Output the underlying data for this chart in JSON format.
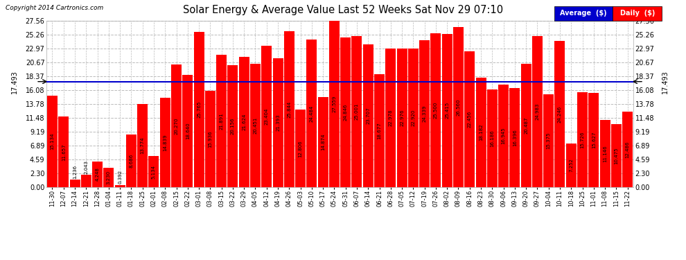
{
  "title": "Solar Energy & Average Value Last 52 Weeks Sat Nov 29 07:10",
  "copyright": "Copyright 2014 Cartronics.com",
  "average_label": "Average  ($)",
  "daily_label": "Daily  ($)",
  "average_value": 17.493,
  "bar_color": "#ff0000",
  "background_color": "#ffffff",
  "plot_bg_color": "#ffffff",
  "grid_color": "#bbbbbb",
  "average_line_color": "#0000cc",
  "legend_avg_color": "#0000cc",
  "legend_daily_color": "#ff0000",
  "yticks": [
    0.0,
    2.3,
    4.59,
    6.89,
    9.19,
    11.48,
    13.78,
    16.08,
    18.37,
    20.67,
    22.97,
    25.26,
    27.56
  ],
  "ymax": 27.56,
  "categories": [
    "11-30",
    "12-07",
    "12-14",
    "12-21",
    "12-28",
    "01-04",
    "01-11",
    "01-18",
    "01-25",
    "02-01",
    "02-08",
    "02-15",
    "02-22",
    "03-01",
    "03-08",
    "03-15",
    "03-22",
    "03-29",
    "04-05",
    "04-12",
    "04-19",
    "04-26",
    "05-03",
    "05-10",
    "05-17",
    "05-24",
    "05-31",
    "06-07",
    "06-14",
    "06-21",
    "06-28",
    "07-05",
    "07-12",
    "07-19",
    "07-26",
    "08-02",
    "08-09",
    "08-16",
    "08-23",
    "08-30",
    "09-06",
    "09-13",
    "09-20",
    "09-27",
    "10-04",
    "10-11",
    "10-18",
    "10-25",
    "11-01",
    "11-08",
    "11-15",
    "11-22"
  ],
  "values": [
    15.134,
    11.657,
    1.236,
    2.043,
    4.248,
    3.23,
    0.392,
    8.686,
    13.774,
    5.134,
    14.839,
    20.27,
    18.64,
    25.765,
    15.936,
    21.891,
    20.156,
    21.624,
    20.451,
    23.404,
    21.393,
    25.844,
    12.806,
    24.484,
    14.874,
    27.559,
    24.846,
    25.001,
    23.707,
    18.677,
    22.978,
    22.976,
    22.92,
    24.339,
    25.5,
    25.415,
    26.56,
    22.456,
    18.182,
    16.186,
    16.945,
    16.396,
    20.487,
    24.983,
    15.375,
    24.246,
    7.252,
    15.726,
    15.627,
    11.146,
    10.475,
    12.486
  ]
}
